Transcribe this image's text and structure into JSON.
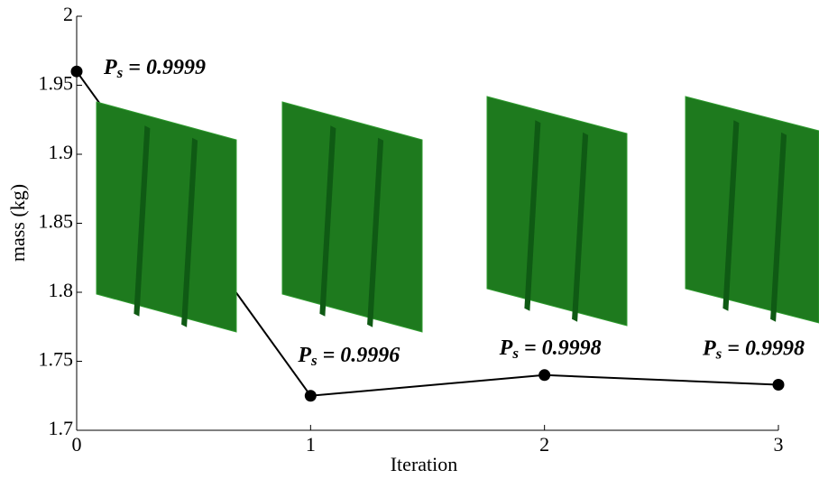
{
  "chart_data": {
    "type": "line",
    "x_label": "Iteration",
    "y_label": "mass (kg)",
    "x": [
      0,
      1,
      2,
      3
    ],
    "series": [
      {
        "color": "#000000",
        "values": [
          1.96,
          1.725,
          1.74,
          1.733
        ]
      }
    ],
    "xlim": [
      0,
      3
    ],
    "xticks": [
      0,
      1,
      2,
      3
    ],
    "ylim": [
      1.7,
      2
    ],
    "yticks": [
      1.7,
      1.75,
      1.8,
      1.85,
      1.9,
      1.95,
      2
    ],
    "annotations": [
      {
        "main": "P",
        "sub": "s",
        "text": " = 0.9999"
      },
      {
        "main": "P",
        "sub": "s",
        "text": " = 0.9996"
      },
      {
        "main": "P",
        "sub": "s",
        "text": " = 0.9998"
      },
      {
        "main": "P",
        "sub": "s",
        "text": " = 0.9998"
      }
    ]
  }
}
